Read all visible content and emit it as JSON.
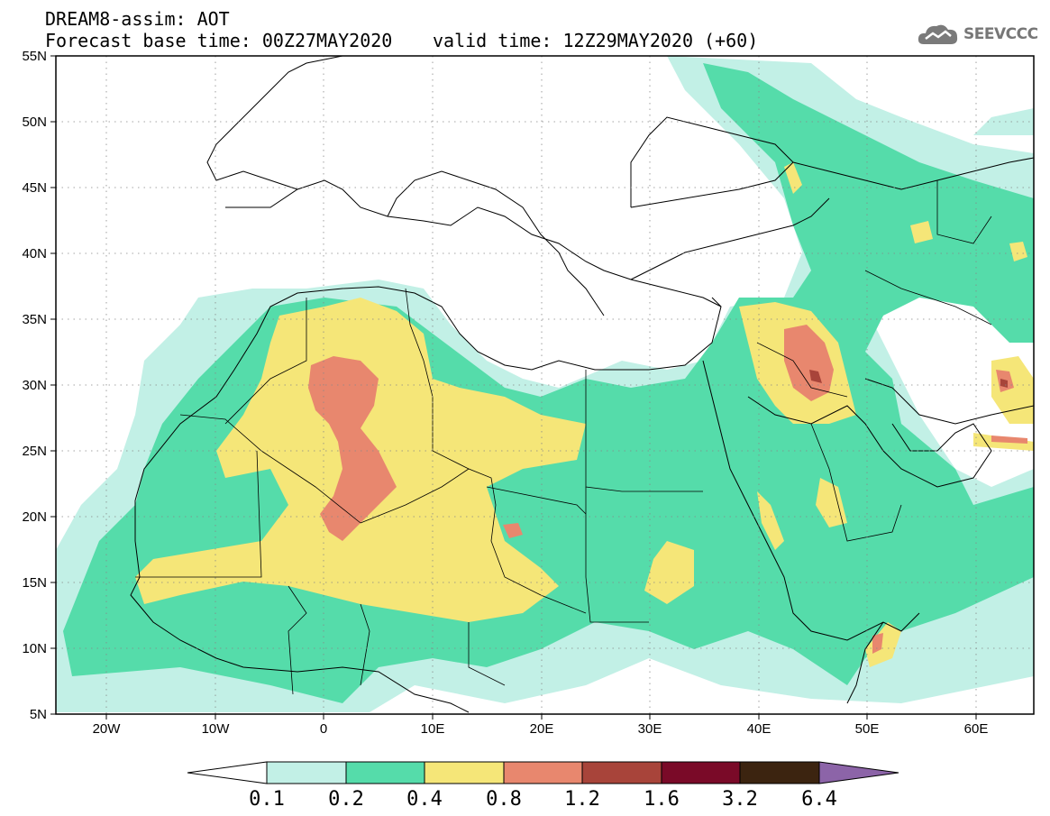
{
  "title": {
    "line1": "DREAM8-assim: AOT",
    "line2_base": "Forecast base time: 00Z27MAY2020",
    "line2_valid": "valid time: 12Z29MAY2020 (+60)"
  },
  "logo": {
    "text": "SEEVCCC",
    "icon": "cloud-icon"
  },
  "map": {
    "lon_range": [
      -25,
      65
    ],
    "lat_range": [
      5,
      55
    ],
    "lat_labels": [
      "55N",
      "50N",
      "45N",
      "40N",
      "35N",
      "30N",
      "25N",
      "20N",
      "15N",
      "10N",
      "5N"
    ],
    "lon_labels": [
      "20W",
      "10W",
      "0",
      "10E",
      "20E",
      "30E",
      "40E",
      "50E",
      "60E"
    ],
    "grid": true
  },
  "colorbar": {
    "labels": [
      "0.1",
      "0.2",
      "0.4",
      "0.8",
      "1.2",
      "1.6",
      "3.2",
      "6.4"
    ],
    "colors": [
      "#ffffff",
      "#c2f0e6",
      "#55dcaa",
      "#f5e678",
      "#e8876e",
      "#a8443a",
      "#7a0a28",
      "#3c2410",
      "#8c64a8"
    ]
  },
  "colors": {
    "c1": "#c2f0e6",
    "c2": "#55dcaa",
    "c3": "#f5e678",
    "c4": "#e8876e",
    "c5": "#a8443a"
  }
}
